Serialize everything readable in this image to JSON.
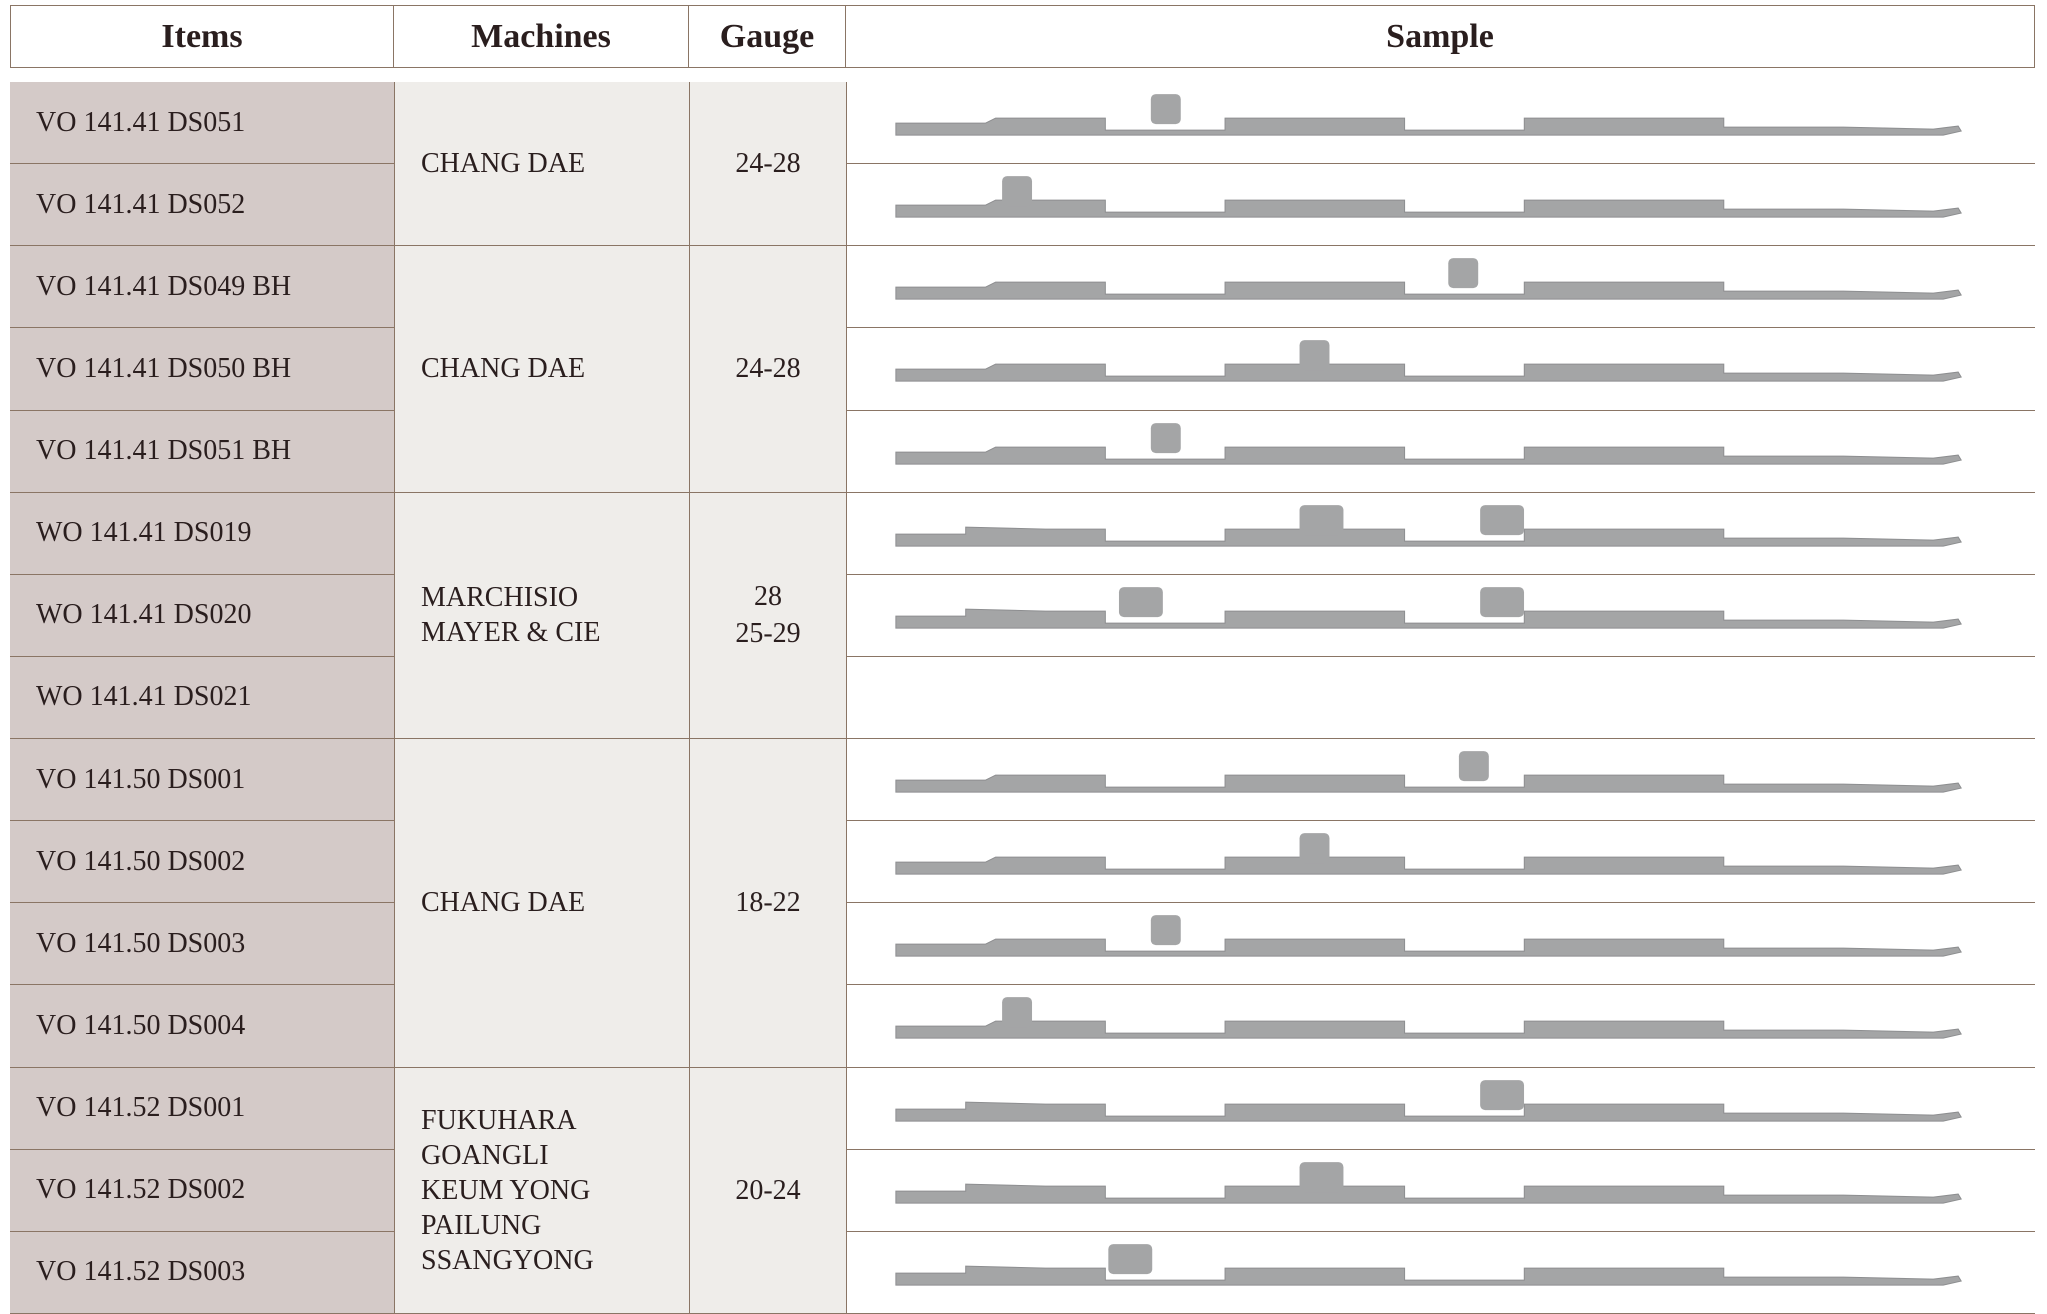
{
  "table": {
    "header": [
      "Items",
      "Machines",
      "Gauge",
      "Sample"
    ],
    "groups": [
      {
        "items": [
          "VO 141.41 DS051",
          "VO 141.41 DS052"
        ],
        "machines": [
          "CHANG DAE"
        ],
        "gauge": [
          "24-28"
        ]
      },
      {
        "items": [
          "VO 141.41 DS049 BH",
          "VO 141.41 DS050 BH",
          "VO 141.41 DS051 BH"
        ],
        "machines": [
          "CHANG DAE"
        ],
        "gauge": [
          "24-28"
        ]
      },
      {
        "items": [
          "WO 141.41 DS019",
          "WO 141.41 DS020",
          "WO 141.41 DS021"
        ],
        "machines": [
          "MARCHISIO",
          "MAYER & CIE"
        ],
        "gauge": [
          "28",
          "25-29"
        ]
      },
      {
        "items": [
          "VO 141.50 DS001",
          "VO 141.50 DS002",
          "VO 141.50 DS003",
          "VO 141.50 DS004"
        ],
        "machines": [
          "CHANG DAE"
        ],
        "gauge": [
          "18-22"
        ]
      },
      {
        "items": [
          "VO 141.52 DS001",
          "VO 141.52 DS002",
          "VO 141.52 DS003"
        ],
        "machines": [
          "FUKUHARA",
          "GOANGLI",
          "KEUM YONG",
          "PAILUNG",
          "SSANGYONG"
        ],
        "gauge": [
          "20-24"
        ]
      }
    ]
  }
}
